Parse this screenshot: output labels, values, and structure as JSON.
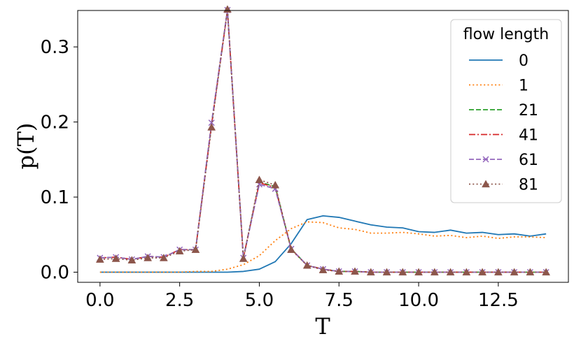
{
  "chart_data": {
    "type": "line",
    "xlabel": "T",
    "ylabel": "p(T)",
    "xlim": [
      -0.7,
      14.7
    ],
    "ylim": [
      -0.0135,
      0.3485
    ],
    "xticks": [
      0.0,
      2.5,
      5.0,
      7.5,
      10.0,
      12.5
    ],
    "xtick_labels": [
      "0.0",
      "2.5",
      "5.0",
      "7.5",
      "10.0",
      "12.5"
    ],
    "yticks": [
      0.0,
      0.1,
      0.2,
      0.3
    ],
    "ytick_labels": [
      "0.0",
      "0.1",
      "0.2",
      "0.3"
    ],
    "grid": false,
    "legend": {
      "title": "flow length",
      "placement": "top-right"
    },
    "x": [
      0.0,
      0.5,
      1.0,
      1.5,
      2.0,
      2.5,
      3.0,
      3.5,
      4.0,
      4.5,
      5.0,
      5.5,
      6.0,
      6.5,
      7.0,
      7.5,
      8.0,
      8.5,
      9.0,
      9.5,
      10.0,
      10.5,
      11.0,
      11.5,
      12.0,
      12.5,
      13.0,
      13.5,
      14.0
    ],
    "series": [
      {
        "name": "0",
        "color": "#1f77b4",
        "style": "solid",
        "marker": "none",
        "values": [
          0.0,
          0.0,
          0.0,
          0.0,
          0.0,
          0.0,
          0.0,
          0.0,
          0.0,
          0.001,
          0.004,
          0.014,
          0.038,
          0.07,
          0.075,
          0.073,
          0.068,
          0.063,
          0.06,
          0.059,
          0.054,
          0.053,
          0.056,
          0.052,
          0.053,
          0.05,
          0.051,
          0.048,
          0.051
        ]
      },
      {
        "name": "1",
        "color": "#ff7f0e",
        "style": "dotted",
        "marker": "none",
        "values": [
          0.0,
          0.0,
          0.0,
          0.0,
          0.0,
          0.0,
          0.001,
          0.001,
          0.004,
          0.01,
          0.022,
          0.042,
          0.058,
          0.067,
          0.066,
          0.059,
          0.057,
          0.052,
          0.052,
          0.053,
          0.051,
          0.048,
          0.049,
          0.046,
          0.048,
          0.045,
          0.047,
          0.047,
          0.046
        ]
      },
      {
        "name": "21",
        "color": "#2ca02c",
        "style": "dashed",
        "marker": "none",
        "values": [
          0.019,
          0.02,
          0.017,
          0.021,
          0.02,
          0.03,
          0.03,
          0.197,
          0.349,
          0.019,
          0.12,
          0.114,
          0.031,
          0.009,
          0.004,
          0.001,
          0.001,
          0.0,
          0.0,
          0.0,
          0.0,
          0.0,
          0.0,
          0.0,
          0.0,
          0.0,
          0.0,
          0.0,
          0.0
        ]
      },
      {
        "name": "41",
        "color": "#d62728",
        "style": "dashdot",
        "marker": "none",
        "values": [
          0.019,
          0.02,
          0.017,
          0.021,
          0.02,
          0.03,
          0.03,
          0.196,
          0.348,
          0.019,
          0.119,
          0.113,
          0.031,
          0.009,
          0.004,
          0.001,
          0.001,
          0.0,
          0.0,
          0.0,
          0.0,
          0.0,
          0.0,
          0.0,
          0.0,
          0.0,
          0.0,
          0.0,
          0.0
        ]
      },
      {
        "name": "61",
        "color": "#9467bd",
        "style": "dashed",
        "marker": "x",
        "values": [
          0.019,
          0.02,
          0.017,
          0.021,
          0.02,
          0.03,
          0.03,
          0.199,
          0.349,
          0.019,
          0.117,
          0.111,
          0.031,
          0.009,
          0.004,
          0.001,
          0.001,
          0.0,
          0.0,
          0.0,
          0.0,
          0.0,
          0.0,
          0.0,
          0.0,
          0.0,
          0.0,
          0.0,
          0.0
        ]
      },
      {
        "name": "81",
        "color": "#8c564b",
        "style": "dotted",
        "marker": "triangle",
        "values": [
          0.017,
          0.018,
          0.016,
          0.019,
          0.019,
          0.028,
          0.03,
          0.193,
          0.35,
          0.018,
          0.123,
          0.116,
          0.03,
          0.009,
          0.003,
          0.001,
          0.001,
          0.0,
          0.0,
          0.0,
          0.0,
          0.0,
          0.0,
          0.0,
          0.0,
          0.0,
          0.0,
          0.0,
          0.0
        ]
      }
    ]
  }
}
